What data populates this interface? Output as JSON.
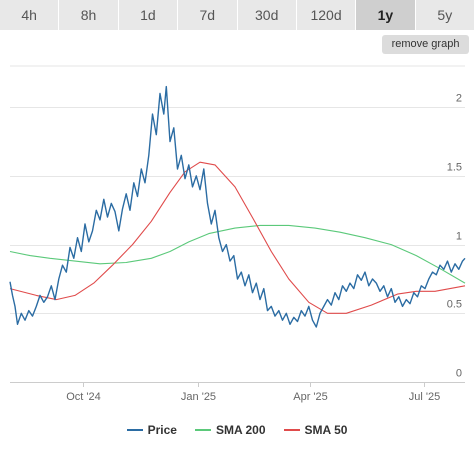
{
  "range_tabs": [
    {
      "label": "4h",
      "active": false
    },
    {
      "label": "8h",
      "active": false
    },
    {
      "label": "1d",
      "active": false
    },
    {
      "label": "7d",
      "active": false
    },
    {
      "label": "30d",
      "active": false
    },
    {
      "label": "120d",
      "active": false
    },
    {
      "label": "1y",
      "active": true
    },
    {
      "label": "5y",
      "active": false
    }
  ],
  "remove_graph_label": "remove graph",
  "chart_data": {
    "type": "line",
    "x_unit": "date",
    "x_range": [
      "2024-08-04",
      "2025-08-03"
    ],
    "ylim": [
      0,
      2.3
    ],
    "yticks": [
      0,
      0.5,
      1,
      1.5,
      2
    ],
    "ytick_labels": [
      "0",
      "0.5",
      "1",
      "1.5",
      "2"
    ],
    "xticks": [
      {
        "label": "Oct '24",
        "date": "2024-10-01"
      },
      {
        "label": "Jan '25",
        "date": "2025-01-01"
      },
      {
        "label": "Apr '25",
        "date": "2025-04-01"
      },
      {
        "label": "Jul '25",
        "date": "2025-07-01"
      }
    ],
    "grid": true,
    "legend_position": "bottom",
    "series": [
      {
        "name": "Price",
        "color": "#2b6ca3",
        "points": [
          [
            "2024-08-04",
            0.73
          ],
          [
            "2024-08-06",
            0.63
          ],
          [
            "2024-08-08",
            0.55
          ],
          [
            "2024-08-10",
            0.42
          ],
          [
            "2024-08-13",
            0.5
          ],
          [
            "2024-08-16",
            0.45
          ],
          [
            "2024-08-19",
            0.52
          ],
          [
            "2024-08-22",
            0.48
          ],
          [
            "2024-08-25",
            0.55
          ],
          [
            "2024-08-28",
            0.63
          ],
          [
            "2024-08-31",
            0.58
          ],
          [
            "2024-09-03",
            0.62
          ],
          [
            "2024-09-06",
            0.7
          ],
          [
            "2024-09-09",
            0.6
          ],
          [
            "2024-09-12",
            0.75
          ],
          [
            "2024-09-15",
            0.85
          ],
          [
            "2024-09-18",
            0.8
          ],
          [
            "2024-09-21",
            0.98
          ],
          [
            "2024-09-24",
            0.9
          ],
          [
            "2024-09-27",
            1.05
          ],
          [
            "2024-09-30",
            0.95
          ],
          [
            "2024-10-03",
            1.15
          ],
          [
            "2024-10-06",
            1.02
          ],
          [
            "2024-10-09",
            1.1
          ],
          [
            "2024-10-12",
            1.25
          ],
          [
            "2024-10-15",
            1.18
          ],
          [
            "2024-10-18",
            1.33
          ],
          [
            "2024-10-21",
            1.2
          ],
          [
            "2024-10-24",
            1.3
          ],
          [
            "2024-10-27",
            1.24
          ],
          [
            "2024-10-30",
            1.1
          ],
          [
            "2024-11-02",
            1.26
          ],
          [
            "2024-11-05",
            1.37
          ],
          [
            "2024-11-08",
            1.25
          ],
          [
            "2024-11-11",
            1.45
          ],
          [
            "2024-11-14",
            1.35
          ],
          [
            "2024-11-17",
            1.55
          ],
          [
            "2024-11-20",
            1.45
          ],
          [
            "2024-11-23",
            1.65
          ],
          [
            "2024-11-26",
            1.95
          ],
          [
            "2024-11-29",
            1.8
          ],
          [
            "2024-12-02",
            2.1
          ],
          [
            "2024-12-05",
            1.95
          ],
          [
            "2024-12-07",
            2.15
          ],
          [
            "2024-12-10",
            1.75
          ],
          [
            "2024-12-13",
            1.85
          ],
          [
            "2024-12-16",
            1.55
          ],
          [
            "2024-12-19",
            1.65
          ],
          [
            "2024-12-22",
            1.48
          ],
          [
            "2024-12-25",
            1.58
          ],
          [
            "2024-12-28",
            1.42
          ],
          [
            "2024-12-31",
            1.5
          ],
          [
            "2025-01-03",
            1.4
          ],
          [
            "2025-01-06",
            1.55
          ],
          [
            "2025-01-09",
            1.3
          ],
          [
            "2025-01-12",
            1.15
          ],
          [
            "2025-01-15",
            1.25
          ],
          [
            "2025-01-18",
            1.05
          ],
          [
            "2025-01-21",
            0.95
          ],
          [
            "2025-01-24",
            1.0
          ],
          [
            "2025-01-27",
            0.88
          ],
          [
            "2025-01-30",
            0.92
          ],
          [
            "2025-02-02",
            0.75
          ],
          [
            "2025-02-05",
            0.8
          ],
          [
            "2025-02-08",
            0.7
          ],
          [
            "2025-02-11",
            0.78
          ],
          [
            "2025-02-14",
            0.65
          ],
          [
            "2025-02-17",
            0.72
          ],
          [
            "2025-02-20",
            0.6
          ],
          [
            "2025-02-23",
            0.68
          ],
          [
            "2025-02-26",
            0.52
          ],
          [
            "2025-03-01",
            0.55
          ],
          [
            "2025-03-04",
            0.48
          ],
          [
            "2025-03-07",
            0.52
          ],
          [
            "2025-03-10",
            0.45
          ],
          [
            "2025-03-13",
            0.5
          ],
          [
            "2025-03-16",
            0.42
          ],
          [
            "2025-03-19",
            0.47
          ],
          [
            "2025-03-22",
            0.44
          ],
          [
            "2025-03-25",
            0.52
          ],
          [
            "2025-03-28",
            0.48
          ],
          [
            "2025-03-31",
            0.55
          ],
          [
            "2025-04-03",
            0.45
          ],
          [
            "2025-04-06",
            0.4
          ],
          [
            "2025-04-09",
            0.5
          ],
          [
            "2025-04-12",
            0.55
          ],
          [
            "2025-04-15",
            0.6
          ],
          [
            "2025-04-18",
            0.56
          ],
          [
            "2025-04-21",
            0.65
          ],
          [
            "2025-04-24",
            0.6
          ],
          [
            "2025-04-27",
            0.7
          ],
          [
            "2025-04-30",
            0.66
          ],
          [
            "2025-05-03",
            0.72
          ],
          [
            "2025-05-06",
            0.68
          ],
          [
            "2025-05-09",
            0.78
          ],
          [
            "2025-05-12",
            0.74
          ],
          [
            "2025-05-15",
            0.8
          ],
          [
            "2025-05-18",
            0.7
          ],
          [
            "2025-05-21",
            0.75
          ],
          [
            "2025-05-24",
            0.72
          ],
          [
            "2025-05-27",
            0.66
          ],
          [
            "2025-05-30",
            0.7
          ],
          [
            "2025-06-02",
            0.62
          ],
          [
            "2025-06-05",
            0.68
          ],
          [
            "2025-06-08",
            0.58
          ],
          [
            "2025-06-11",
            0.62
          ],
          [
            "2025-06-14",
            0.55
          ],
          [
            "2025-06-17",
            0.6
          ],
          [
            "2025-06-20",
            0.57
          ],
          [
            "2025-06-23",
            0.65
          ],
          [
            "2025-06-26",
            0.62
          ],
          [
            "2025-06-29",
            0.7
          ],
          [
            "2025-07-02",
            0.68
          ],
          [
            "2025-07-05",
            0.75
          ],
          [
            "2025-07-08",
            0.8
          ],
          [
            "2025-07-11",
            0.78
          ],
          [
            "2025-07-14",
            0.85
          ],
          [
            "2025-07-17",
            0.82
          ],
          [
            "2025-07-20",
            0.88
          ],
          [
            "2025-07-23",
            0.8
          ],
          [
            "2025-07-26",
            0.86
          ],
          [
            "2025-07-29",
            0.82
          ],
          [
            "2025-08-01",
            0.88
          ],
          [
            "2025-08-03",
            0.9
          ]
        ]
      },
      {
        "name": "SMA 200",
        "color": "#5bc97a",
        "points": [
          [
            "2024-08-04",
            0.95
          ],
          [
            "2024-08-20",
            0.92
          ],
          [
            "2024-09-05",
            0.9
          ],
          [
            "2024-09-25",
            0.88
          ],
          [
            "2024-10-15",
            0.86
          ],
          [
            "2024-11-05",
            0.87
          ],
          [
            "2024-11-25",
            0.9
          ],
          [
            "2024-12-10",
            0.95
          ],
          [
            "2024-12-25",
            1.02
          ],
          [
            "2025-01-10",
            1.08
          ],
          [
            "2025-01-31",
            1.12
          ],
          [
            "2025-02-20",
            1.14
          ],
          [
            "2025-03-15",
            1.14
          ],
          [
            "2025-04-05",
            1.12
          ],
          [
            "2025-04-25",
            1.09
          ],
          [
            "2025-05-15",
            1.05
          ],
          [
            "2025-06-05",
            1.0
          ],
          [
            "2025-06-25",
            0.92
          ],
          [
            "2025-07-15",
            0.82
          ],
          [
            "2025-08-03",
            0.72
          ]
        ]
      },
      {
        "name": "SMA 50",
        "color": "#e04b4b",
        "points": [
          [
            "2024-08-04",
            0.68
          ],
          [
            "2024-08-25",
            0.63
          ],
          [
            "2024-09-10",
            0.6
          ],
          [
            "2024-09-25",
            0.63
          ],
          [
            "2024-10-10",
            0.72
          ],
          [
            "2024-10-25",
            0.85
          ],
          [
            "2024-11-10",
            1.0
          ],
          [
            "2024-11-25",
            1.17
          ],
          [
            "2024-12-10",
            1.38
          ],
          [
            "2024-12-22",
            1.53
          ],
          [
            "2025-01-03",
            1.6
          ],
          [
            "2025-01-15",
            1.58
          ],
          [
            "2025-01-31",
            1.42
          ],
          [
            "2025-02-15",
            1.18
          ],
          [
            "2025-03-01",
            0.95
          ],
          [
            "2025-03-15",
            0.75
          ],
          [
            "2025-03-31",
            0.58
          ],
          [
            "2025-04-15",
            0.5
          ],
          [
            "2025-04-30",
            0.5
          ],
          [
            "2025-05-20",
            0.56
          ],
          [
            "2025-06-10",
            0.64
          ],
          [
            "2025-06-25",
            0.66
          ],
          [
            "2025-07-10",
            0.66
          ],
          [
            "2025-08-03",
            0.7
          ]
        ]
      }
    ]
  }
}
